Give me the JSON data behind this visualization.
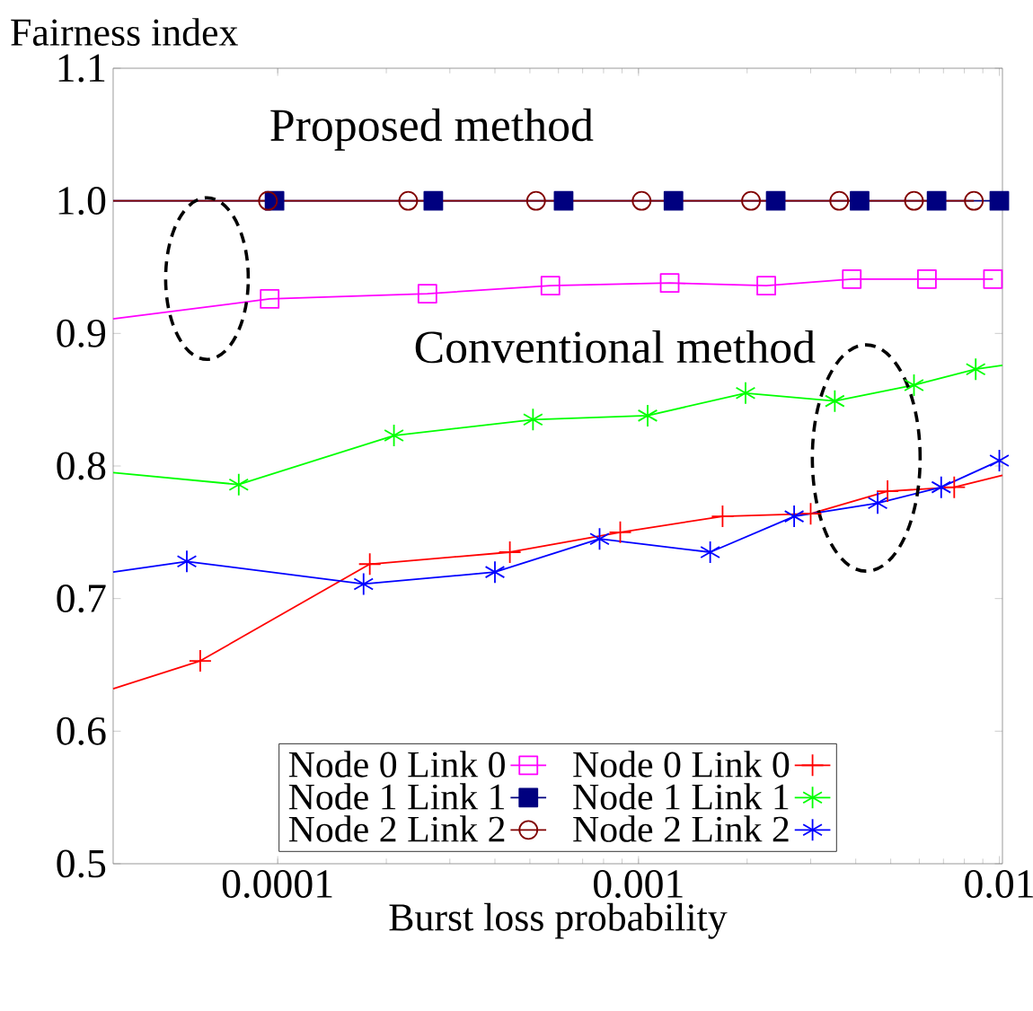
{
  "chart_data": {
    "type": "line",
    "xlabel": "Burst loss probability",
    "ylabel": "Fairness index",
    "log": "x",
    "xlim": [
      3.5e-05,
      0.0102
    ],
    "xticks": [
      0.0001,
      0.001,
      0.01
    ],
    "ylim": [
      0.5,
      1.1
    ],
    "yticks": [
      {
        "value": 0.5,
        "label": "0.5"
      },
      {
        "value": 0.6,
        "label": "0.6"
      },
      {
        "value": 0.7,
        "label": "0.7"
      },
      {
        "value": 0.8,
        "label": "0.8"
      },
      {
        "value": 0.9,
        "label": "0.9"
      },
      {
        "value": 1.0,
        "label": "1.0"
      },
      {
        "value": 1.1,
        "label": "1.1"
      }
    ],
    "grid": false,
    "legend": "bottom",
    "line_style": "solid",
    "annotations": [
      "Proposed method",
      "Conventional method"
    ],
    "series": [
      {
        "name": "Node 0 Link 0",
        "color": "#ff00ff",
        "marker": "square",
        "x": [
          3.5e-05,
          9.5e-05,
          0.00026,
          0.00057,
          0.00122,
          0.00226,
          0.0039,
          0.0063,
          0.0096
        ],
        "values": [
          0.911,
          0.926,
          0.93,
          0.936,
          0.938,
          0.936,
          0.941,
          0.941,
          0.941
        ]
      },
      {
        "name": "Node 0 Link 0",
        "color": "#ff0000",
        "marker": "plus",
        "x": [
          3.5e-05,
          6.1e-05,
          0.00018,
          0.00044,
          0.00089,
          0.00171,
          0.003,
          0.0049,
          0.0075,
          0.0102
        ],
        "values": [
          0.632,
          0.653,
          0.726,
          0.735,
          0.75,
          0.762,
          0.764,
          0.781,
          0.784,
          0.793
        ]
      },
      {
        "name": "Node 1 Link 1",
        "color": "#00007f",
        "marker": "square_filled",
        "x": [
          3.5e-05,
          9.8e-05,
          0.00027,
          0.00062,
          0.00125,
          0.0024,
          0.0041,
          0.0067,
          0.01
        ],
        "values": [
          1.0,
          1.0,
          1.0,
          1.0,
          1.0,
          1.0,
          1.0,
          1.0,
          1.0
        ]
      },
      {
        "name": "Node 1 Link 1",
        "color": "#00ff00",
        "marker": "cross",
        "x": [
          3.5e-05,
          7.8e-05,
          0.00021,
          0.00051,
          0.00106,
          0.00198,
          0.0035,
          0.0058,
          0.0086,
          0.0102
        ],
        "values": [
          0.795,
          0.786,
          0.823,
          0.835,
          0.838,
          0.855,
          0.849,
          0.861,
          0.873,
          0.876
        ]
      },
      {
        "name": "Node 2 Link 2",
        "color": "#800000",
        "marker": "circle",
        "x": [
          3.5e-05,
          9.4e-05,
          0.00023,
          0.00052,
          0.00102,
          0.00205,
          0.0036,
          0.0058,
          0.0085
        ],
        "values": [
          1.0,
          1.0,
          1.0,
          1.0,
          1.0,
          1.0,
          1.0,
          1.0,
          1.0
        ]
      },
      {
        "name": "Node 2 Link 2",
        "color": "#0000ff",
        "marker": "cross",
        "x": [
          3.5e-05,
          5.6e-05,
          0.000173,
          0.0004,
          0.00078,
          0.00158,
          0.0027,
          0.0046,
          0.0069,
          0.01
        ],
        "values": [
          0.72,
          0.728,
          0.711,
          0.72,
          0.745,
          0.735,
          0.762,
          0.772,
          0.784,
          0.804
        ]
      }
    ]
  }
}
